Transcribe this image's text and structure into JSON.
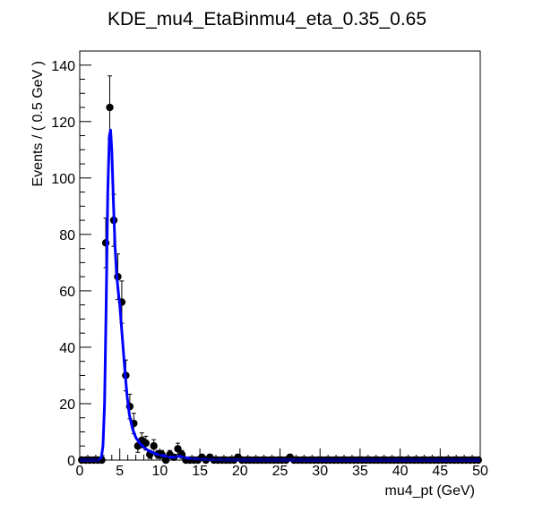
{
  "chart_data": {
    "type": "scatter",
    "title": "KDE_mu4_EtaBinmu4_eta_0.35_0.65",
    "xlabel": "mu4_pt (GeV)",
    "ylabel": "Events / ( 0.5 GeV )",
    "xlim": [
      0,
      50
    ],
    "ylim": [
      0,
      145
    ],
    "xticks": [
      0,
      5,
      10,
      15,
      20,
      25,
      30,
      35,
      40,
      45,
      50
    ],
    "yticks": [
      0,
      20,
      40,
      60,
      80,
      100,
      120,
      140
    ],
    "grid": false,
    "legend": "none",
    "colors": {
      "data": "#000000",
      "curve": "#0000ff"
    },
    "series": [
      {
        "kind": "data-points-with-errors",
        "x": [
          0.25,
          0.75,
          1.25,
          1.75,
          2.25,
          2.75,
          3.25,
          3.75,
          4.25,
          4.75,
          5.25,
          5.75,
          6.25,
          6.75,
          7.25,
          7.75,
          8.25,
          8.75,
          9.25,
          9.75,
          10.25,
          10.75,
          11.25,
          11.75,
          12.25,
          12.75,
          13.25,
          13.75,
          14.25,
          14.75,
          15.25,
          15.75,
          16.25,
          16.75,
          17.25,
          17.75,
          18.25,
          18.75,
          19.25,
          19.75,
          20.25,
          20.75,
          21.25,
          21.75,
          22.25,
          22.75,
          23.25,
          23.75,
          24.25,
          24.75,
          25.25,
          25.75,
          26.25,
          26.75,
          27.25,
          27.75,
          28.25,
          28.75,
          29.25,
          29.75,
          30.25,
          30.75,
          31.25,
          31.75,
          32.25,
          32.75,
          33.25,
          33.75,
          34.25,
          34.75,
          35.25,
          35.75,
          36.25,
          36.75,
          37.25,
          37.75,
          38.25,
          38.75,
          39.25,
          39.75,
          40.25,
          40.75,
          41.25,
          41.75,
          42.25,
          42.75,
          43.25,
          43.75,
          44.25,
          44.75,
          45.25,
          45.75,
          46.25,
          46.75,
          47.25,
          47.75,
          48.25,
          48.75,
          49.25,
          49.75
        ],
        "y": [
          0,
          0,
          0,
          0,
          0,
          0,
          77,
          125,
          85,
          65,
          56,
          30,
          19,
          13,
          5,
          7,
          6,
          2,
          5,
          2,
          2,
          0,
          2,
          1,
          4,
          2,
          0,
          0,
          0,
          0,
          1,
          0,
          1,
          0,
          0,
          0,
          0,
          0,
          0,
          1,
          0,
          0,
          0,
          0,
          0,
          0,
          0,
          0,
          0,
          0,
          0,
          0,
          1,
          0,
          0,
          0,
          0,
          0,
          0,
          0,
          0,
          0,
          0,
          0,
          0,
          0,
          0,
          0,
          0,
          0,
          0,
          0,
          0,
          0,
          0,
          0,
          0,
          0,
          0,
          0,
          0,
          0,
          0,
          0,
          0,
          0,
          0,
          0,
          0,
          0,
          0,
          0,
          0,
          0,
          0,
          0,
          0,
          0,
          0,
          0
        ]
      },
      {
        "kind": "kde-curve",
        "x": [
          0,
          2.4,
          2.7,
          2.9,
          3.1,
          3.3,
          3.5,
          3.7,
          3.85,
          4.0,
          4.2,
          4.4,
          4.6,
          4.8,
          5.0,
          5.3,
          5.6,
          5.9,
          6.2,
          6.6,
          7.0,
          7.5,
          8.0,
          8.5,
          9.0,
          9.5,
          10.0,
          10.5,
          11.0,
          11.5,
          12.0,
          12.5,
          13.0,
          14.0,
          15.0,
          16.0,
          20.0,
          30.0,
          40.0,
          50.0
        ],
        "y": [
          0,
          0,
          1,
          5,
          20,
          55,
          95,
          115,
          117,
          110,
          92,
          76,
          66,
          60,
          55,
          44,
          33,
          23,
          16,
          11,
          8,
          6,
          4.5,
          3.5,
          2.8,
          2.2,
          1.8,
          1.5,
          1.2,
          1.0,
          1.1,
          1.4,
          0.9,
          0.4,
          0.2,
          0.1,
          0.05,
          0.02,
          0,
          0
        ]
      }
    ]
  }
}
